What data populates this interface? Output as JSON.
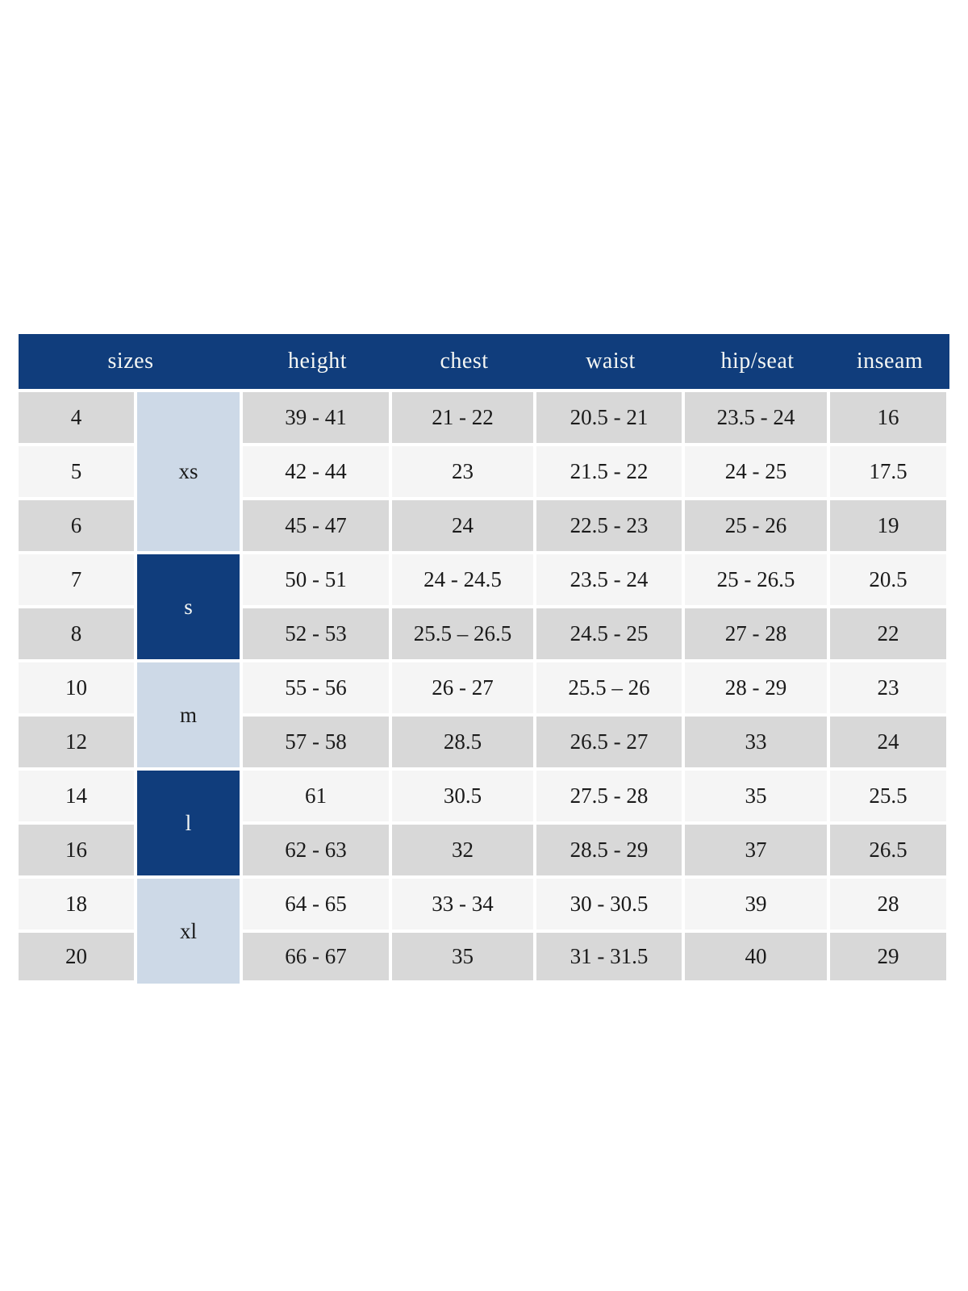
{
  "colors": {
    "header_bg": "#103d7c",
    "header_text": "#f5f7f4",
    "row_gray": "#d8d8d8",
    "row_light": "#f5f5f5",
    "group_light_bg": "#cdd9e7",
    "group_dark_bg": "#103d7c",
    "group_dark_text": "#f5f7f4",
    "cell_text": "#1a1a1a"
  },
  "chart_data": {
    "type": "table",
    "header_row": [
      "sizes",
      "height",
      "chest",
      "waist",
      "hip/seat",
      "inseam"
    ],
    "groups": [
      {
        "label": "xs",
        "rows": 3
      },
      {
        "label": "s",
        "rows": 2
      },
      {
        "label": "m",
        "rows": 2
      },
      {
        "label": "l",
        "rows": 2
      },
      {
        "label": "xl",
        "rows": 2
      }
    ],
    "rows": [
      {
        "size": "4",
        "height": "39 - 41",
        "chest": "21 - 22",
        "waist": "20.5 - 21",
        "hip_seat": "23.5 - 24",
        "inseam": "16"
      },
      {
        "size": "5",
        "height": "42 - 44",
        "chest": "23",
        "waist": "21.5 - 22",
        "hip_seat": "24 - 25",
        "inseam": "17.5"
      },
      {
        "size": "6",
        "height": "45 - 47",
        "chest": "24",
        "waist": "22.5 - 23",
        "hip_seat": "25 - 26",
        "inseam": "19"
      },
      {
        "size": "7",
        "height": "50 - 51",
        "chest": "24 - 24.5",
        "waist": "23.5 - 24",
        "hip_seat": "25 - 26.5",
        "inseam": "20.5"
      },
      {
        "size": "8",
        "height": "52 - 53",
        "chest": "25.5 – 26.5",
        "waist": "24.5 - 25",
        "hip_seat": "27 - 28",
        "inseam": "22"
      },
      {
        "size": "10",
        "height": "55 - 56",
        "chest": "26 - 27",
        "waist": "25.5 – 26",
        "hip_seat": "28 - 29",
        "inseam": "23"
      },
      {
        "size": "12",
        "height": "57 - 58",
        "chest": "28.5",
        "waist": "26.5 - 27",
        "hip_seat": "33",
        "inseam": "24"
      },
      {
        "size": "14",
        "height": "61",
        "chest": "30.5",
        "waist": "27.5 - 28",
        "hip_seat": "35",
        "inseam": "25.5"
      },
      {
        "size": "16",
        "height": "62 - 63",
        "chest": "32",
        "waist": "28.5 - 29",
        "hip_seat": "37",
        "inseam": "26.5"
      },
      {
        "size": "18",
        "height": "64 - 65",
        "chest": "33 - 34",
        "waist": "30 - 30.5",
        "hip_seat": "39",
        "inseam": "28"
      },
      {
        "size": "20",
        "height": "66 - 67",
        "chest": "35",
        "waist": "31 - 31.5",
        "hip_seat": "40",
        "inseam": "29"
      }
    ]
  }
}
